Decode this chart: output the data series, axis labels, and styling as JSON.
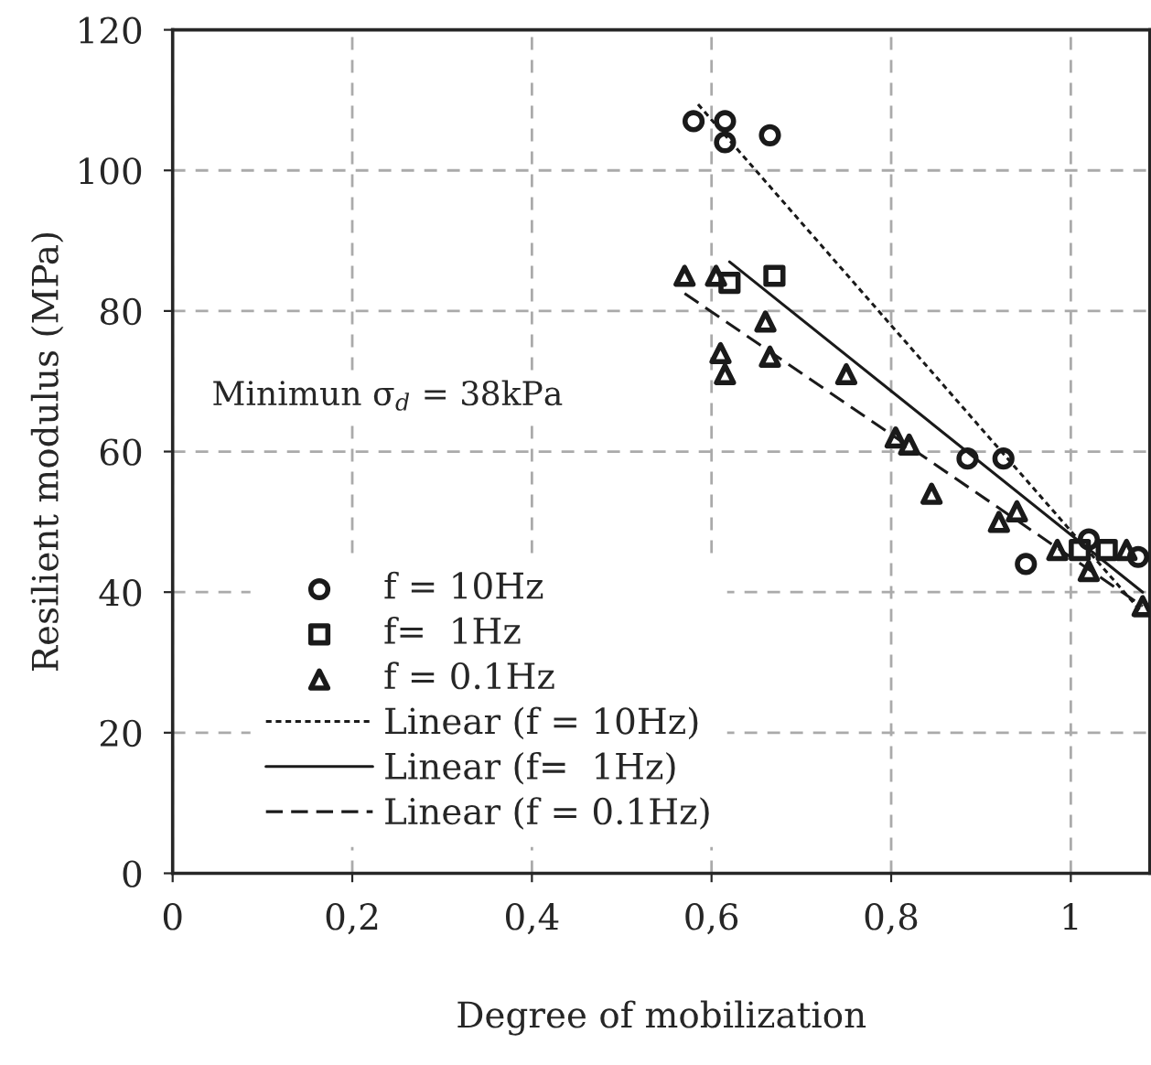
{
  "chart_data": {
    "type": "scatter",
    "xlabel": "Degree of mobilization",
    "ylabel": "Resilient modulus (MPa)",
    "annotations": [
      "Minimun σ$_{d}$ = 38kPa"
    ],
    "xlim": [
      0,
      1.088
    ],
    "xticks": [
      0,
      {
        "value": 0.2,
        "label": "0,2"
      },
      {
        "value": 0.4,
        "label": "0,4"
      },
      {
        "value": 0.6,
        "label": "0,6"
      },
      {
        "value": 0.8,
        "label": "0,8"
      },
      1
    ],
    "ylim": [
      0,
      120
    ],
    "yticks": [
      0,
      20,
      40,
      60,
      80,
      100,
      120
    ],
    "grid": true,
    "legend": "bottom left",
    "series": [
      {
        "name": "f = 10Hz",
        "marker": "circle",
        "color": "#1a1a1a",
        "x": [
          0.58,
          0.615,
          0.615,
          0.665,
          0.885,
          0.925,
          0.95,
          1.02,
          1.075
        ],
        "values": [
          107,
          107,
          104,
          105,
          59,
          59,
          44,
          47.5,
          45
        ]
      },
      {
        "name": "f=  1Hz",
        "marker": "square",
        "color": "#1a1a1a",
        "x": [
          0.62,
          0.67,
          1.01,
          1.04
        ],
        "values": [
          84,
          85,
          46,
          46
        ]
      },
      {
        "name": "f = 0.1Hz",
        "marker": "triangle",
        "color": "#1a1a1a",
        "x": [
          0.57,
          0.605,
          0.61,
          0.615,
          0.66,
          0.665,
          0.75,
          0.805,
          0.82,
          0.845,
          0.92,
          0.94,
          0.985,
          1.02,
          1.062,
          1.08
        ],
        "values": [
          85,
          85,
          74,
          71,
          78.5,
          73.5,
          71,
          62,
          61,
          54,
          50,
          51.5,
          46,
          43,
          46,
          38
        ]
      },
      {
        "name": "Linear (f = 10Hz)",
        "type": "line",
        "marker": "none",
        "line_style": "dotted",
        "color": "#1a1a1a",
        "x": [
          0.585,
          1.08
        ],
        "values": [
          109.4,
          37
        ]
      },
      {
        "name": "Linear (f=  1Hz)",
        "type": "line",
        "marker": "none",
        "line_style": "solid",
        "color": "#1a1a1a",
        "x": [
          0.62,
          1.08
        ],
        "values": [
          87,
          40
        ]
      },
      {
        "name": "Linear (f = 0.1Hz)",
        "type": "line",
        "marker": "none",
        "line_style": "dashed",
        "color": "#1a1a1a",
        "x": [
          0.57,
          1.08
        ],
        "values": [
          82.5,
          38
        ]
      }
    ]
  }
}
